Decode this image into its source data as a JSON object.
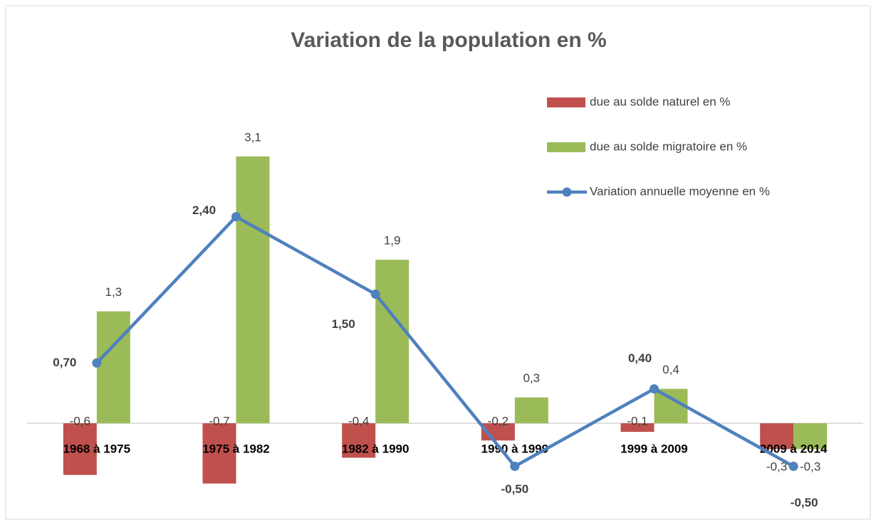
{
  "chart_data": {
    "type": "bar",
    "title": "Variation de la population en %",
    "categories": [
      "1968 à 1975",
      "1975 à 1982",
      "1982 à 1990",
      "1990 à 1999",
      "1999 à 2009",
      "2009 à 2014"
    ],
    "series": [
      {
        "name": "due au solde naturel en %",
        "color": "#c0504d",
        "type": "bar",
        "values": [
          -0.6,
          -0.7,
          -0.4,
          -0.2,
          -0.1,
          -0.3
        ],
        "value_labels": [
          "-0,6",
          "-0,7",
          "-0,4",
          "-0,2",
          "-0,1",
          "-0,3"
        ]
      },
      {
        "name": "due au solde migratoire en %",
        "color": "#9bbb59",
        "type": "bar",
        "values": [
          1.3,
          3.1,
          1.9,
          0.3,
          0.4,
          -0.3
        ],
        "value_labels": [
          "1,3",
          "3,1",
          "1,9",
          "0,3",
          "0,4",
          "-0,3"
        ]
      },
      {
        "name": "Variation annuelle moyenne  en %",
        "color": "#4f81bd",
        "type": "line",
        "values": [
          0.7,
          2.4,
          1.5,
          -0.5,
          0.4,
          -0.5
        ],
        "value_labels": [
          "0,70",
          "2,40",
          "1,50",
          "-0,50",
          "0,40",
          "-0,50"
        ]
      }
    ],
    "ylim": [
      -1,
      4
    ],
    "legend": "top-right"
  }
}
